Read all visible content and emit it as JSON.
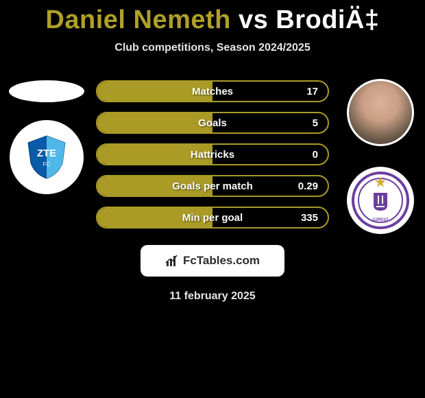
{
  "header": {
    "player1": "Daniel Nemeth",
    "vs": "vs",
    "player2": "BrodiÄ‡",
    "subtitle": "Club competitions, Season 2024/2025"
  },
  "colors": {
    "accent": "#aa9b27",
    "background": "#000000",
    "text_light": "#ffffff",
    "subtitle": "#e6e6e6",
    "card_bg": "#ffffff"
  },
  "stats": [
    {
      "label": "Matches",
      "value": "17",
      "fill_pct": 50
    },
    {
      "label": "Goals",
      "value": "5",
      "fill_pct": 50
    },
    {
      "label": "Hattricks",
      "value": "0",
      "fill_pct": 50
    },
    {
      "label": "Goals per match",
      "value": "0.29",
      "fill_pct": 50
    },
    {
      "label": "Min per goal",
      "value": "335",
      "fill_pct": 50
    }
  ],
  "branding": {
    "text": "FcTables.com",
    "icon": "bar-chart-icon"
  },
  "date": "11 february 2025",
  "left": {
    "club_name": "ZTE",
    "club_primary": "#0a5aa8",
    "club_bg": "#ffffff"
  },
  "right": {
    "club_name": "Újpest",
    "club_primary": "#6b3fa0",
    "club_bg": "#ffffff"
  }
}
